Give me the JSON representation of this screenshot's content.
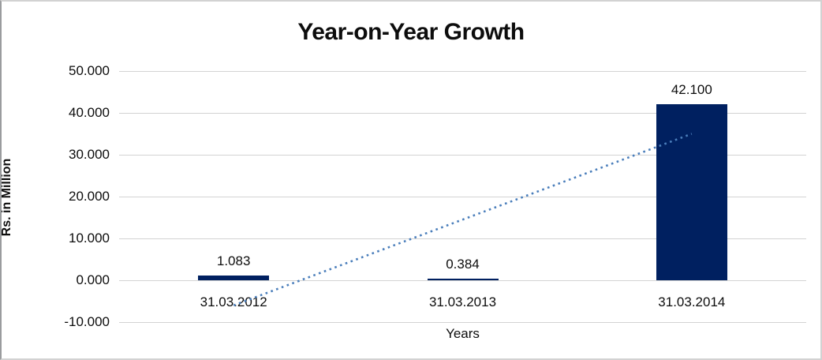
{
  "chart_data": {
    "type": "bar",
    "title": "Year-on-Year Growth",
    "xlabel": "Years",
    "ylabel": "Rs. in Million",
    "categories": [
      "31.03.2012",
      "31.03.2013",
      "31.03.2014"
    ],
    "values": [
      1.083,
      0.384,
      42.1
    ],
    "value_labels": [
      "1.083",
      "0.384",
      "42.100"
    ],
    "ylim": [
      -10,
      50
    ],
    "ytick_labels": [
      "50.000",
      "40.000",
      "30.000",
      "20.000",
      "10.000",
      "0.000",
      "-10.000"
    ],
    "grid": true,
    "legend": "none",
    "colors": {
      "bar": "#002060",
      "trendline": "#4a7ebb",
      "gridline": "#d3d3d3",
      "text": "#0d0d0d",
      "background": "#ffffff"
    },
    "trendline": {
      "type": "linear",
      "style": "dotted",
      "start_category_index": 0,
      "end_category_index": 2,
      "start_value": -6.0,
      "end_value": 35.0
    }
  }
}
